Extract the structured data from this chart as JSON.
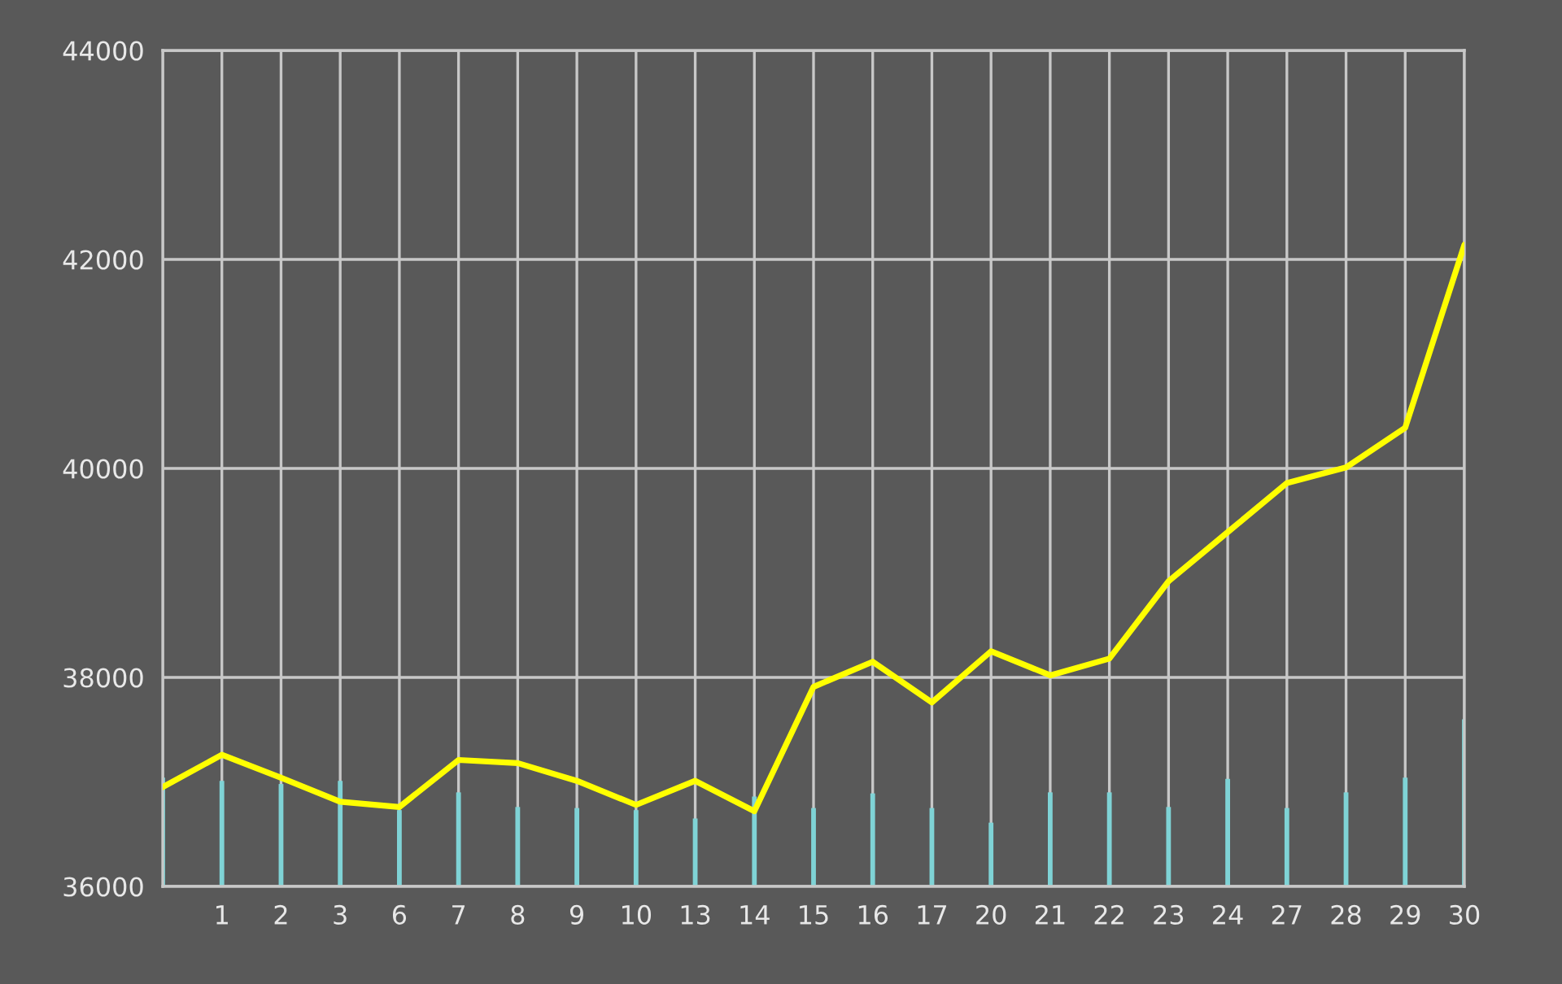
{
  "chart_data": {
    "type": "line",
    "categories": [
      null,
      "1",
      "2",
      "3",
      "6",
      "7",
      "8",
      "9",
      "10",
      "13",
      "14",
      "15",
      "16",
      "17",
      "20",
      "21",
      "22",
      "23",
      "24",
      "27",
      "28",
      "29",
      "30"
    ],
    "series": [
      {
        "type": "bar",
        "color": "#7fd3d6",
        "base": [
          36000,
          36000,
          36000,
          36000,
          36000,
          36000,
          36000,
          36000,
          36000,
          36000,
          36000,
          36000,
          36000,
          36000,
          36000,
          36000,
          36000,
          36000,
          36000,
          36000,
          36000,
          36000,
          36000
        ],
        "values": [
          1040,
          1010,
          980,
          1010,
          730,
          900,
          760,
          750,
          730,
          650,
          860,
          750,
          890,
          750,
          610,
          900,
          900,
          760,
          1030,
          750,
          900,
          1040,
          1600
        ]
      },
      {
        "color": "#ffff00",
        "values": [
          36950,
          37260,
          37040,
          36810,
          36760,
          37210,
          37180,
          37010,
          36780,
          37010,
          36720,
          37910,
          38150,
          37760,
          38250,
          38020,
          38180,
          38920,
          39390,
          39860,
          40010,
          40390,
          42140
        ]
      }
    ],
    "ylim": [
      36000,
      44000
    ],
    "yticks": [
      36000,
      38000,
      40000,
      42000,
      44000
    ],
    "grid": true,
    "marker": "none",
    "line_style": "solid"
  }
}
